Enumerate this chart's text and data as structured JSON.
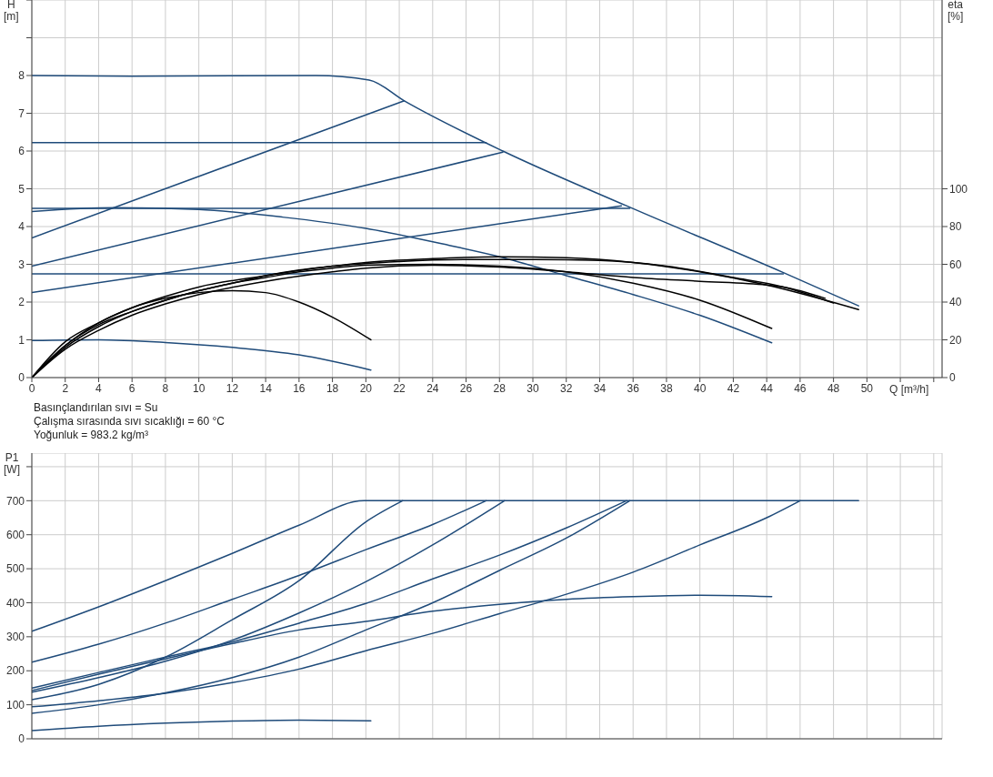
{
  "chart_data": [
    {
      "type": "line",
      "xlabel": "Q [m³/h]",
      "ylabel": "H [m]",
      "y2label": "eta [%]",
      "xlim": [
        0,
        54.5
      ],
      "xticks": [
        0,
        2,
        4,
        6,
        8,
        10,
        12,
        14,
        16,
        18,
        20,
        22,
        24,
        26,
        28,
        30,
        32,
        34,
        36,
        38,
        40,
        42,
        44,
        46,
        48,
        50,
        {
          "value": 52,
          "label": null
        },
        {
          "value": 54,
          "label": null
        }
      ],
      "ylim": [
        0,
        10
      ],
      "yticks": [
        0,
        1,
        2,
        3,
        4,
        5,
        6,
        7,
        8,
        {
          "value": 9,
          "label": null
        },
        {
          "value": 10,
          "label": null
        }
      ],
      "y2lim": [
        0,
        200
      ],
      "y2ticks": [
        0,
        20,
        40,
        60,
        80,
        100
      ],
      "grid": true,
      "annotations": [
        "Basınçlandırılan sıvı = Su",
        "Çalışma sırasında sıvı sıcaklığı = 60 °C",
        "Yoğunluk = 983.2 kg/m³"
      ],
      "series": [
        {
          "color": "#1f4b7a",
          "x": [
            0,
            6,
            17,
            20.2,
            22.3,
            28.2,
            35.6,
            45,
            49.5
          ],
          "values": [
            8,
            7.98,
            8,
            7.88,
            7.33,
            6.0,
            4.55,
            2.78,
            1.9
          ]
        },
        {
          "color": "#1f4b7a",
          "x": [
            0,
            22.3
          ],
          "values": [
            3.7,
            7.33
          ]
        },
        {
          "color": "#1f4b7a",
          "x": [
            0,
            28.2
          ],
          "values": [
            2.95,
            5.97
          ]
        },
        {
          "color": "#1f4b7a",
          "x": [
            0,
            35.3
          ],
          "values": [
            2.25,
            4.55
          ]
        },
        {
          "color": "#1f4b7a",
          "x": [
            0,
            27.2
          ],
          "values": [
            6.22,
            6.22
          ]
        },
        {
          "color": "#1f4b7a",
          "x": [
            0,
            35.8
          ],
          "values": [
            4.48,
            4.48
          ]
        },
        {
          "color": "#1f4b7a",
          "x": [
            0,
            45
          ],
          "values": [
            2.75,
            2.75
          ]
        },
        {
          "color": "#1f4b7a",
          "x": [
            0,
            5,
            10,
            15,
            20,
            25,
            28,
            32,
            36,
            40,
            44.3
          ],
          "values": [
            4.4,
            4.5,
            4.45,
            4.25,
            3.95,
            3.5,
            3.2,
            2.7,
            2.2,
            1.65,
            0.92
          ]
        },
        {
          "color": "#1f4b7a",
          "x": [
            0,
            4,
            8,
            12,
            16,
            20.3
          ],
          "values": [
            0.98,
            1.0,
            0.93,
            0.8,
            0.6,
            0.2
          ]
        },
        {
          "color": "#000000",
          "axis": "y2",
          "x": [
            0,
            2,
            4,
            6,
            8,
            10,
            12,
            14,
            16,
            18,
            20.3
          ],
          "values": [
            0,
            19,
            29,
            37,
            42,
            45,
            46,
            45,
            40,
            32,
            20
          ]
        },
        {
          "color": "#000000",
          "axis": "y2",
          "x": [
            0,
            2,
            4,
            6,
            8,
            10,
            12,
            14,
            16,
            18,
            20,
            24,
            28,
            32,
            36,
            40,
            44.3
          ],
          "values": [
            0,
            17,
            28,
            35,
            41,
            46,
            50,
            53,
            56,
            58,
            59.5,
            60,
            59,
            56,
            50,
            41,
            26
          ]
        },
        {
          "color": "#000000",
          "axis": "y2",
          "x": [
            0,
            2,
            4,
            6,
            8,
            10,
            12,
            14,
            16,
            18,
            20,
            24,
            28,
            32,
            36,
            40,
            44,
            49.5
          ],
          "values": [
            0,
            16,
            27,
            35,
            41,
            46,
            50,
            54,
            57,
            59,
            61,
            63,
            64,
            63.5,
            61,
            56,
            49,
            36
          ]
        },
        {
          "color": "#000000",
          "axis": "y2",
          "x": [
            0,
            2,
            4,
            6,
            8,
            10,
            14,
            18,
            20,
            24,
            28,
            32,
            36,
            40,
            44,
            45,
            47.5
          ],
          "values": [
            0,
            15,
            25,
            33,
            39,
            44,
            51,
            56,
            58,
            59.5,
            58.5,
            56,
            53,
            51,
            49,
            48,
            42
          ]
        },
        {
          "color": "#000000",
          "axis": "y2",
          "x": [
            0,
            2,
            4,
            6,
            8,
            10,
            14,
            18,
            22,
            26,
            30,
            34,
            38,
            42,
            45,
            48
          ],
          "values": [
            0,
            17,
            29,
            37,
            43,
            48,
            54,
            59,
            61.5,
            62.5,
            62.5,
            62,
            59,
            53,
            48,
            39.5
          ]
        }
      ]
    },
    {
      "type": "line",
      "ylabel": "P1 [W]",
      "xlim": [
        0,
        54.5
      ],
      "xticks": [
        0,
        2,
        4,
        6,
        8,
        10,
        12,
        14,
        16,
        18,
        20,
        22,
        24,
        26,
        28,
        30,
        32,
        34,
        36,
        38,
        40,
        42,
        44,
        46,
        48,
        50,
        52,
        54
      ],
      "ylim": [
        0,
        840
      ],
      "yticks": [
        0,
        100,
        200,
        300,
        400,
        500,
        600,
        700,
        {
          "value": 800,
          "label": null
        }
      ],
      "grid": true,
      "tick_labels": "y",
      "series": [
        {
          "color": "#1f4b7a",
          "x": [
            0,
            4,
            8,
            12,
            16,
            19.9,
            49.5
          ],
          "values": [
            316,
            388,
            465,
            545,
            628,
            700,
            700
          ]
        },
        {
          "color": "#1f4b7a",
          "x": [
            0,
            4,
            8,
            12,
            16,
            20,
            24,
            27.2
          ],
          "values": [
            225,
            278,
            340,
            410,
            480,
            556,
            630,
            700
          ]
        },
        {
          "color": "#1f4b7a",
          "x": [
            0,
            4,
            8,
            12,
            16,
            20,
            22.2
          ],
          "values": [
            115,
            160,
            240,
            350,
            465,
            638,
            700
          ]
        },
        {
          "color": "#1f4b7a",
          "x": [
            0,
            4,
            8,
            12,
            16,
            20,
            24,
            28.3
          ],
          "values": [
            137,
            180,
            228,
            290,
            370,
            462,
            570,
            700
          ]
        },
        {
          "color": "#1f4b7a",
          "x": [
            0,
            4,
            8,
            12,
            16,
            20,
            24,
            28,
            32,
            35.6
          ],
          "values": [
            149,
            195,
            240,
            285,
            340,
            398,
            470,
            540,
            620,
            700
          ]
        },
        {
          "color": "#1f4b7a",
          "x": [
            0,
            4,
            8,
            12,
            16,
            20,
            24,
            28,
            32,
            35.8
          ],
          "values": [
            75,
            100,
            135,
            180,
            240,
            320,
            400,
            495,
            590,
            700
          ]
        },
        {
          "color": "#1f4b7a",
          "x": [
            0,
            4,
            8,
            12,
            16,
            20,
            24,
            28,
            32,
            36,
            40,
            44,
            46
          ],
          "values": [
            94,
            112,
            134,
            165,
            205,
            259,
            310,
            368,
            425,
            490,
            570,
            650,
            700
          ]
        },
        {
          "color": "#1f4b7a",
          "x": [
            0,
            4,
            8,
            12,
            16,
            20,
            24,
            28,
            32,
            36,
            40,
            44.3
          ],
          "values": [
            142,
            190,
            235,
            280,
            320,
            345,
            375,
            395,
            410,
            418,
            422,
            418
          ]
        },
        {
          "color": "#1f4b7a",
          "x": [
            0,
            4,
            8,
            12,
            16,
            20.3
          ],
          "values": [
            24,
            37,
            46,
            52,
            55,
            53
          ]
        }
      ]
    }
  ]
}
